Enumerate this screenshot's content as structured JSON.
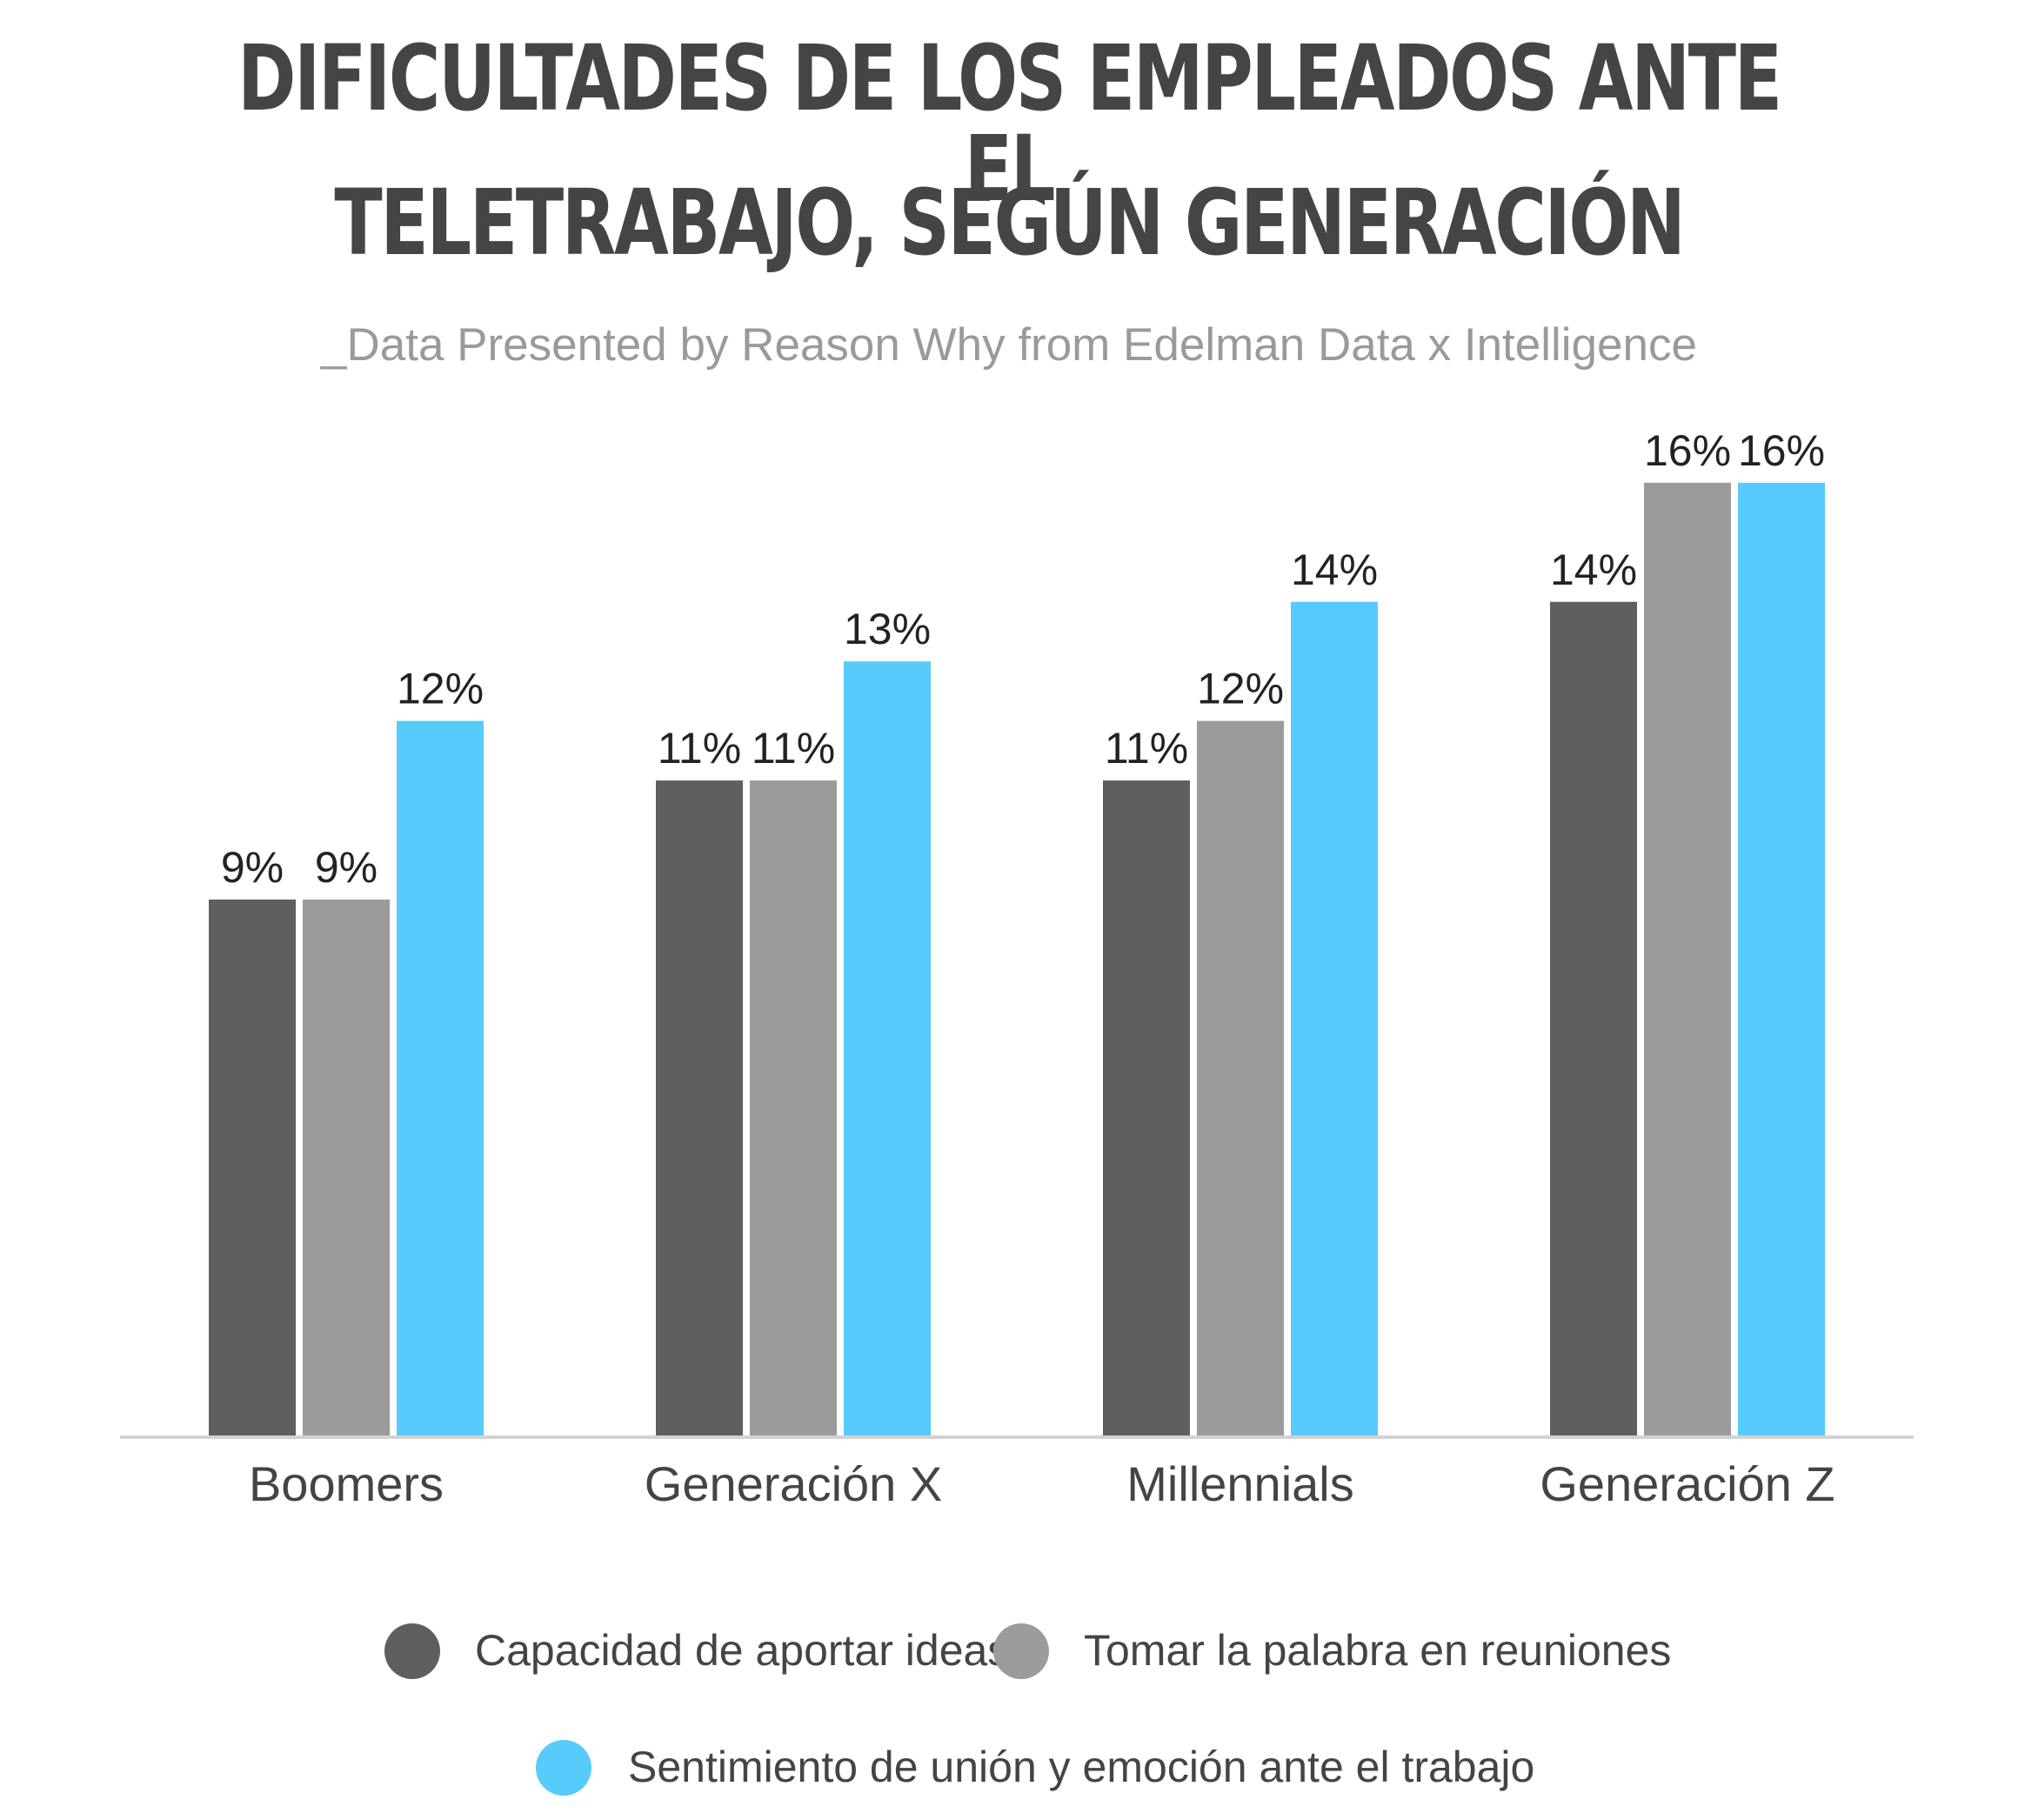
{
  "header": {
    "title_line1": "DIFICULTADES DE LOS EMPLEADOS ANTE EL",
    "title_line2": "TELETRABAJO, SEGÚN GENERACIÓN",
    "subtitle": "_Data Presented by Reason Why from Edelman Data x Intelligence"
  },
  "chart_data": {
    "type": "bar",
    "title": "DIFICULTADES DE LOS EMPLEADOS ANTE EL TELETRABAJO, SEGÚN GENERACIÓN",
    "subtitle": "_Data Presented by Reason Why from Edelman Data x Intelligence",
    "categories": [
      "Boomers",
      "Generación X",
      "Millennials",
      "Generación Z"
    ],
    "series": [
      {
        "name": "Capacidad de aportar ideas",
        "values": [
          9,
          11,
          11,
          14
        ],
        "labels": [
          "9%",
          "11%",
          "11%",
          "14%"
        ],
        "color": "#5f5f5f"
      },
      {
        "name": "Tomar la palabra en reuniones",
        "values": [
          9,
          11,
          12,
          16
        ],
        "labels": [
          "9%",
          "11%",
          "12%",
          "16%"
        ],
        "color": "#9b9b9b"
      },
      {
        "name": "Sentimiento de unión y emoción ante el trabajo",
        "values": [
          12,
          13,
          14,
          16
        ],
        "labels": [
          "12%",
          "13%",
          "14%",
          "16%"
        ],
        "color": "#57cbfc"
      }
    ],
    "ylim": [
      0,
      16
    ],
    "grid": false,
    "legend_position": "bottom"
  }
}
